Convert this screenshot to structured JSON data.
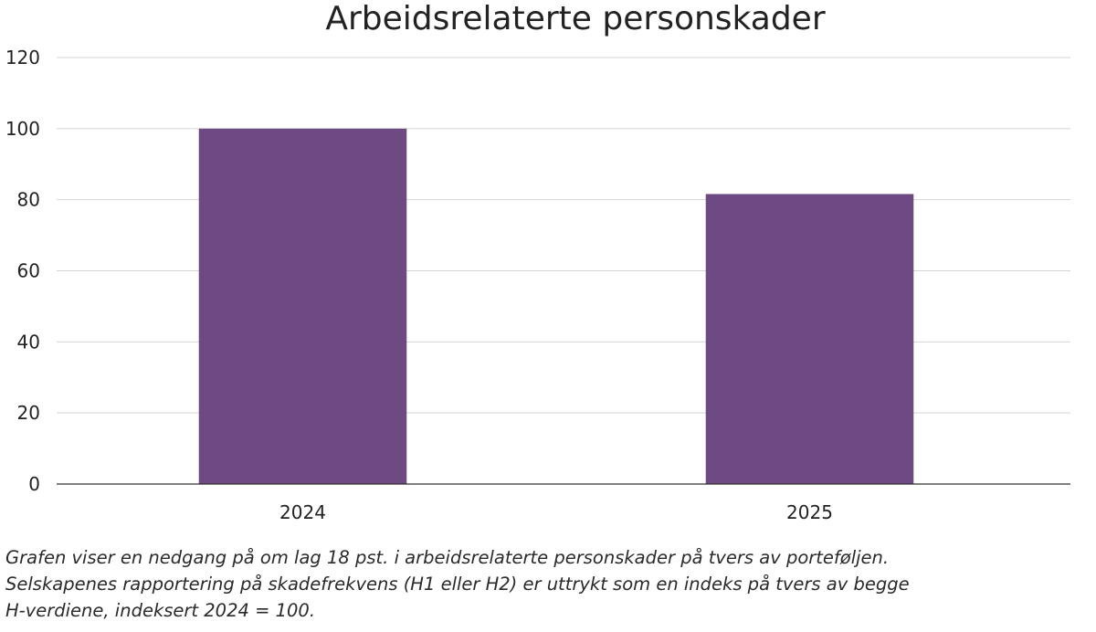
{
  "chart_data": {
    "type": "bar",
    "title": "Arbeidsrelaterte personskader",
    "categories": [
      "2024",
      "2025"
    ],
    "values": [
      100,
      81.6
    ],
    "ylim": [
      0,
      120
    ],
    "yticks": [
      0,
      20,
      40,
      60,
      80,
      100,
      120
    ],
    "grid": true,
    "bar_color": "#6e4a83"
  },
  "caption": {
    "lines": [
      "Grafen viser en nedgang på om lag 18 pst. i arbeidsrelaterte personskader på tvers av porteføljen.",
      "Selskapenes rapportering på skadefrekvens (H1 eller H2) er uttrykt som en indeks på tvers av begge",
      "H-verdiene, indeksert 2024 = 100."
    ]
  }
}
